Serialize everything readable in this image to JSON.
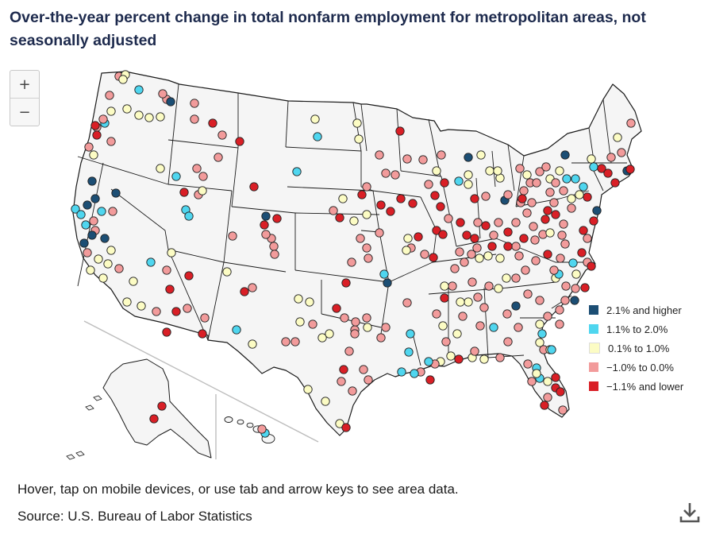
{
  "title": "Over-the-year percent change in total nonfarm employment for metropolitan areas, not seasonally adjusted",
  "zoom": {
    "in_label": "+",
    "out_label": "−"
  },
  "legend": [
    {
      "label": "2.1% and higher",
      "color": "#1c4e74"
    },
    {
      "label": "1.1% to 2.0%",
      "color": "#4fd6ef"
    },
    {
      "label": "0.1% to 1.0%",
      "color": "#fcfcc4"
    },
    {
      "label": "−1.0% to 0.0%",
      "color": "#f29b9b"
    },
    {
      "label": "−1.1% and lower",
      "color": "#d91f26"
    }
  ],
  "hint": "Hover, tap on mobile devices, or use tab and arrow keys to see area data.",
  "source": "Source: U.S. Bureau of Labor Statistics",
  "download_icon": "download-icon"
}
